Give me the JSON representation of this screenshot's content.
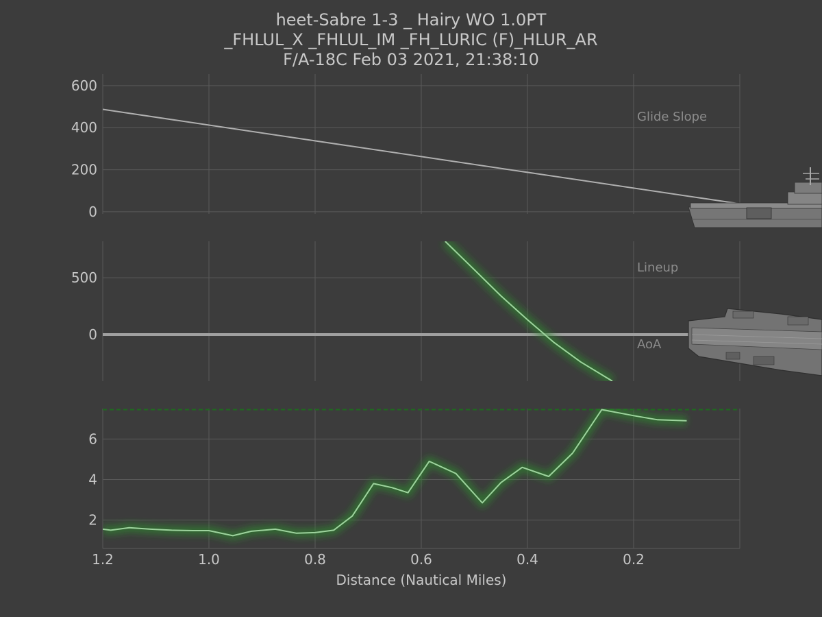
{
  "colors": {
    "background": "#3c3c3c",
    "text": "#c8c8c8",
    "panel_label": "#8c8c8c",
    "grid": "#5a5a5a",
    "glide_line": "#b0b0b0",
    "centerline": "#a0a0a0",
    "series_line": "#9ed39e",
    "series_glow": "#2e8b2e",
    "limit_line": "#1e6b1e",
    "ship": "#7a7a7a"
  },
  "icons": {
    "carrier_side": "carrier-side-view-icon",
    "carrier_top": "carrier-top-view-icon"
  },
  "chart_data": {
    "type": "line",
    "title_lines": [
      "heet-Sabre 1-3 _ Hairy WO 1.0PT",
      "_FHLUL_X _FHLUL_IM  _FH_LURIC (F)_HLUR_AR",
      "F/A-18C Feb 03 2021, 21:38:10"
    ],
    "xlabel": "Distance (Nautical Miles)",
    "xlim": [
      1.2,
      0
    ],
    "x_ticks": [
      "1.2",
      "1.0",
      "0.8",
      "0.6",
      "0.4",
      "0.2"
    ],
    "grid": true,
    "panels": [
      {
        "label": "Glide Slope",
        "ylim": [
          -10,
          655
        ],
        "y_ticks": [
          "0",
          "200",
          "400",
          "600"
        ],
        "series": [
          {
            "x": [
              1.2,
              0.0
            ],
            "y": [
              487,
              38
            ],
            "style": "plain"
          }
        ]
      },
      {
        "label": "Lineup",
        "ylim": [
          -410,
          820
        ],
        "y_ticks": [
          "0",
          "500"
        ],
        "reference_line": 0,
        "series": [
          {
            "x": [
              0.555,
              0.5,
              0.45,
              0.4,
              0.35,
              0.3,
              0.24
            ],
            "y": [
              820,
              570,
              340,
              130,
              -70,
              -240,
              -410
            ],
            "style": "glow"
          }
        ]
      },
      {
        "label": "AoA",
        "ylim": [
          0.6,
          7.5
        ],
        "y_ticks": [
          "2",
          "4",
          "6"
        ],
        "limit_line": 7.45,
        "series": [
          {
            "x": [
              1.2,
              1.185,
              1.15,
              1.11,
              1.07,
              1.03,
              1.0,
              0.955,
              0.92,
              0.875,
              0.835,
              0.8,
              0.765,
              0.73,
              0.69,
              0.655,
              0.625,
              0.585,
              0.535,
              0.485,
              0.45,
              0.41,
              0.36,
              0.315,
              0.26,
              0.2,
              0.155,
              0.1
            ],
            "y": [
              1.55,
              1.5,
              1.62,
              1.55,
              1.5,
              1.48,
              1.48,
              1.23,
              1.45,
              1.55,
              1.35,
              1.38,
              1.5,
              2.2,
              3.8,
              3.6,
              3.35,
              4.9,
              4.3,
              2.85,
              3.85,
              4.6,
              4.15,
              5.3,
              7.45,
              7.15,
              6.95,
              6.9
            ],
            "style": "glow"
          }
        ]
      }
    ]
  }
}
